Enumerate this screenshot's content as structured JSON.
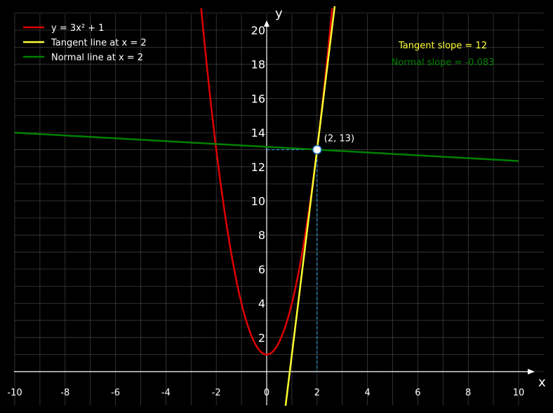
{
  "chart_data": {
    "type": "line",
    "xlabel": "x",
    "ylabel": "y",
    "xlim": [
      -10,
      10
    ],
    "ylim": [
      0,
      20
    ],
    "xticks": [
      -10,
      -8,
      -6,
      -4,
      -2,
      0,
      2,
      4,
      6,
      8,
      10
    ],
    "yticks": [
      2,
      4,
      6,
      8,
      10,
      12,
      14,
      16,
      18,
      20
    ],
    "grid": true,
    "legend_position": "top-left",
    "background": "#000000",
    "series": [
      {
        "name": "y = 3x² + 1",
        "kind": "curve",
        "coefficients": {
          "a": 3,
          "b": 0,
          "c": 1
        },
        "x_range": [
          -2.6,
          2.6
        ],
        "color": "#e00000"
      },
      {
        "name": "Tangent line at x = 2",
        "kind": "line",
        "slope": 12,
        "intercept": -11,
        "x_range": [
          0.75,
          2.7
        ],
        "color": "#ffff33"
      },
      {
        "name": "Normal line at x = 2",
        "kind": "line",
        "slope": -0.083,
        "intercept": 13.167,
        "x_range": [
          -10,
          10
        ],
        "color": "#008000"
      }
    ],
    "point": {
      "x": 2,
      "y": 13,
      "label": "(2, 13)",
      "x_tick_label": "2",
      "x_tick_color": "#33bbff"
    },
    "annotations": [
      {
        "text": "Tangent slope = 12",
        "color": "#ffff33"
      },
      {
        "text": "Normal slope = -0.083",
        "color": "#008000"
      }
    ]
  }
}
